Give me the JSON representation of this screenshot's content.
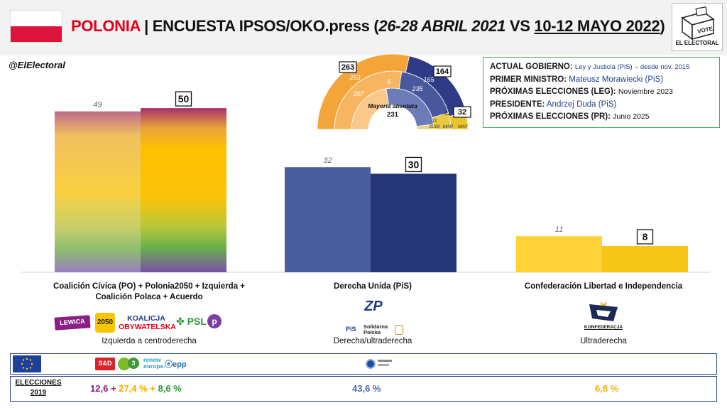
{
  "header": {
    "country": "POLONIA",
    "separator": "|",
    "survey": "ENCUESTA IPSOS/OKO.press",
    "paren_open": "(",
    "date_prev": "26-28 ABRIL 2021",
    "vs": "VS",
    "date_curr": "10-12 MAYO 2022",
    "paren_close": ")",
    "logo_text": "EL ELECTORAL",
    "logo_box_text": "VOTE"
  },
  "handle": "@ElElectoral",
  "info": {
    "gov_key": "ACTUAL GOBIERNO:",
    "gov_val": "Ley y Justicia (PiS)",
    "gov_since": "– desde nov. 2015",
    "pm_key": "PRIMER MINISTRO:",
    "pm_val": "Mateusz Morawiecki (PiS)",
    "leg_key": "PRÓXIMAS ELECCIONES (LEG):",
    "leg_val": "Noviembre 2023",
    "pres_key": "PRESIDENTE:",
    "pres_val": "Andrzej Duda (PiS)",
    "pr_key": "PRÓXIMAS ELECCIONES (PR):",
    "pr_val": "Junio 2025"
  },
  "colors": {
    "coalition_top": "#b3366e",
    "coalition_mid": "#ffc000",
    "coalition_bottom": "#7030a0",
    "pis_prev": "#4a5d9e",
    "pis_curr": "#263576",
    "konf_prev": "#ffd23a",
    "konf_curr": "#f5c518",
    "seats_opposition": "#f4a53a",
    "seats_opposition_light": "#f8c98a",
    "seats_pis": "#2f3b86",
    "seats_konf": "#e8c32a"
  },
  "chart_data": {
    "type": "bar",
    "categories": [
      "Coalición Cívica (PO) + Polonia2050 + Izquierda + Coalición Polaca + Acuerdo",
      "Derecha Unida (PiS)",
      "Confederación Libertad e Independencia"
    ],
    "category_lines": [
      [
        "Coalición Cívica (PO) + Polonia2050 + Izquierda +",
        "Coalición Polaca + Acuerdo"
      ],
      [
        "Derecha Unida (PiS)"
      ],
      [
        "Confederación Libertad e Independencia"
      ]
    ],
    "ideology": [
      "Izquierda a centroderecha",
      "Derecha/ultraderecha",
      "Ultraderecha"
    ],
    "series": [
      {
        "values": [
          49,
          32,
          11
        ]
      },
      {
        "values": [
          50,
          30,
          8
        ]
      }
    ],
    "ylim": [
      0,
      55
    ],
    "grid": false,
    "seats": {
      "title": "Mayoría absoluta",
      "majority": 231,
      "ring_labels": [
        "2019",
        "MAR",
        "MAY"
      ],
      "opposition": [
        207,
        253,
        263
      ],
      "pis": [
        235,
        165,
        164
      ],
      "konfederacja": [
        11,
        41,
        32
      ],
      "pis_2019_label": 6
    }
  },
  "party_logos": {
    "lewica": "LEWICA",
    "p2050": "2050",
    "ko_1": "KOALICJA",
    "ko_2": "OBYWATELSKA",
    "psl": "PSL",
    "zp": "ZP",
    "pis": "PiS",
    "sp_1": "Solidarna",
    "sp_2": "Polska",
    "konf": "KONFEDERACJA"
  },
  "eu_groups": {
    "sd": "S&D",
    "renew_1": "renew",
    "renew_2": "europe.",
    "epp": "epp"
  },
  "elections": {
    "label_1": "ELECCIONES",
    "label_2": "2019",
    "coal_a": "12,6",
    "plus1": "+",
    "coal_b": "27,4 %",
    "plus2": "+",
    "coal_c": "8,6 %",
    "pis": "43,6 %",
    "konf": "6,8 %"
  }
}
